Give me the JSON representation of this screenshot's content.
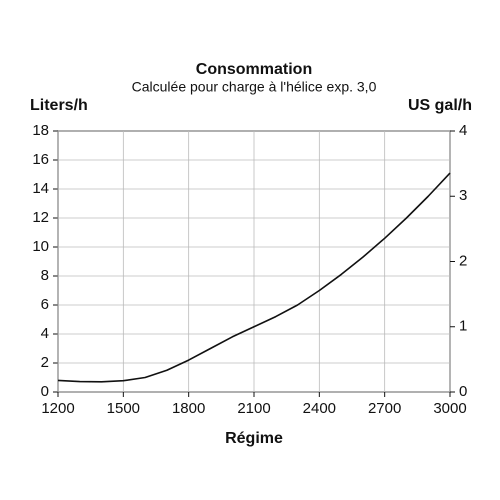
{
  "chart_data": {
    "type": "line",
    "title": "Consommation",
    "subtitle": "Calculée pour charge à l'hélice exp. 3,0",
    "y_label": "Liters/h",
    "y2_label": "US gal/h",
    "x_label": "Régime",
    "x": [
      1200,
      1300,
      1400,
      1500,
      1600,
      1700,
      1800,
      1900,
      2000,
      2100,
      2200,
      2300,
      2400,
      2500,
      2600,
      2700,
      2800,
      2900,
      3000
    ],
    "series": [
      {
        "color": "#111111",
        "values": [
          0.8,
          0.72,
          0.7,
          0.78,
          1.0,
          1.5,
          2.2,
          3.0,
          3.8,
          4.5,
          5.2,
          6.0,
          7.0,
          8.1,
          9.3,
          10.6,
          12.0,
          13.5,
          15.1
        ]
      }
    ],
    "xlim": [
      1200,
      3000
    ],
    "xticks": [
      1200,
      1500,
      1800,
      2100,
      2400,
      2700,
      3000
    ],
    "ylim": [
      0,
      18
    ],
    "yticks": [
      0,
      2,
      4,
      6,
      8,
      10,
      12,
      14,
      16,
      18
    ],
    "y2lim": [
      0,
      4
    ],
    "y2ticks": [
      0,
      1,
      2,
      3,
      4
    ],
    "grid": true
  }
}
